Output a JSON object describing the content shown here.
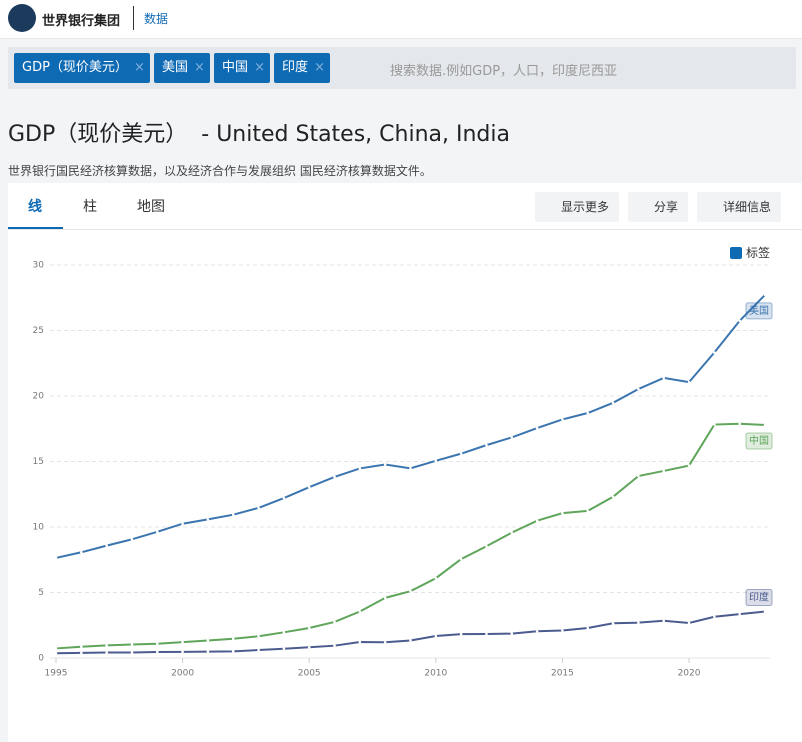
{
  "header": {
    "brand": "世界银行集团",
    "section": "数据"
  },
  "filters": {
    "chips": [
      "GDP（现价美元）",
      "美国",
      "中国",
      "印度"
    ],
    "placeholder": "搜索数据.例如GDP，人口，印度尼西亚"
  },
  "page": {
    "indicator": "GDP（现价美元）",
    "countries": "- United States, China, India",
    "source": "世界银行国民经济核算数据，以及经济合作与发展组织 国民经济核算数据文件。"
  },
  "tabs": [
    "线",
    "柱",
    "地图"
  ],
  "buttons": [
    "显示更多",
    "分享",
    "详细信息"
  ],
  "labels_toggle": "标签",
  "chart_data": {
    "type": "line",
    "x": [
      1995,
      1996,
      1997,
      1998,
      1999,
      2000,
      2001,
      2002,
      2003,
      2004,
      2005,
      2006,
      2007,
      2008,
      2009,
      2010,
      2011,
      2012,
      2013,
      2014,
      2015,
      2016,
      2017,
      2018,
      2019,
      2020,
      2021,
      2022,
      2023
    ],
    "xlim": [
      1995,
      2023
    ],
    "xticks": [
      1995,
      2000,
      2005,
      2010,
      2015,
      2020
    ],
    "ylim": [
      0,
      30
    ],
    "yticks": [
      0,
      5,
      10,
      15,
      20,
      25,
      30
    ],
    "grid": true,
    "series": [
      {
        "name": "美国",
        "color": "#3b75af",
        "values": [
          7.64,
          8.07,
          8.58,
          9.06,
          9.63,
          10.25,
          10.58,
          10.94,
          11.46,
          12.21,
          13.04,
          13.82,
          14.47,
          14.77,
          14.48,
          15.05,
          15.6,
          16.25,
          16.84,
          17.55,
          18.21,
          18.7,
          19.48,
          20.53,
          21.38,
          21.06,
          23.32,
          25.74,
          27.72
        ]
      },
      {
        "name": "中国",
        "color": "#5fa55a",
        "values": [
          0.73,
          0.86,
          0.96,
          1.03,
          1.09,
          1.21,
          1.34,
          1.47,
          1.66,
          1.96,
          2.29,
          2.75,
          3.55,
          4.59,
          5.1,
          6.09,
          7.55,
          8.53,
          9.57,
          10.48,
          11.06,
          11.23,
          12.31,
          13.89,
          14.28,
          14.69,
          17.82,
          17.88,
          17.79
        ]
      },
      {
        "name": "印度",
        "color": "#4c5b8f",
        "values": [
          0.36,
          0.39,
          0.42,
          0.42,
          0.46,
          0.47,
          0.49,
          0.51,
          0.61,
          0.71,
          0.82,
          0.94,
          1.22,
          1.2,
          1.34,
          1.68,
          1.82,
          1.83,
          1.86,
          2.04,
          2.1,
          2.29,
          2.65,
          2.7,
          2.84,
          2.67,
          3.15,
          3.35,
          3.55
        ]
      }
    ]
  }
}
